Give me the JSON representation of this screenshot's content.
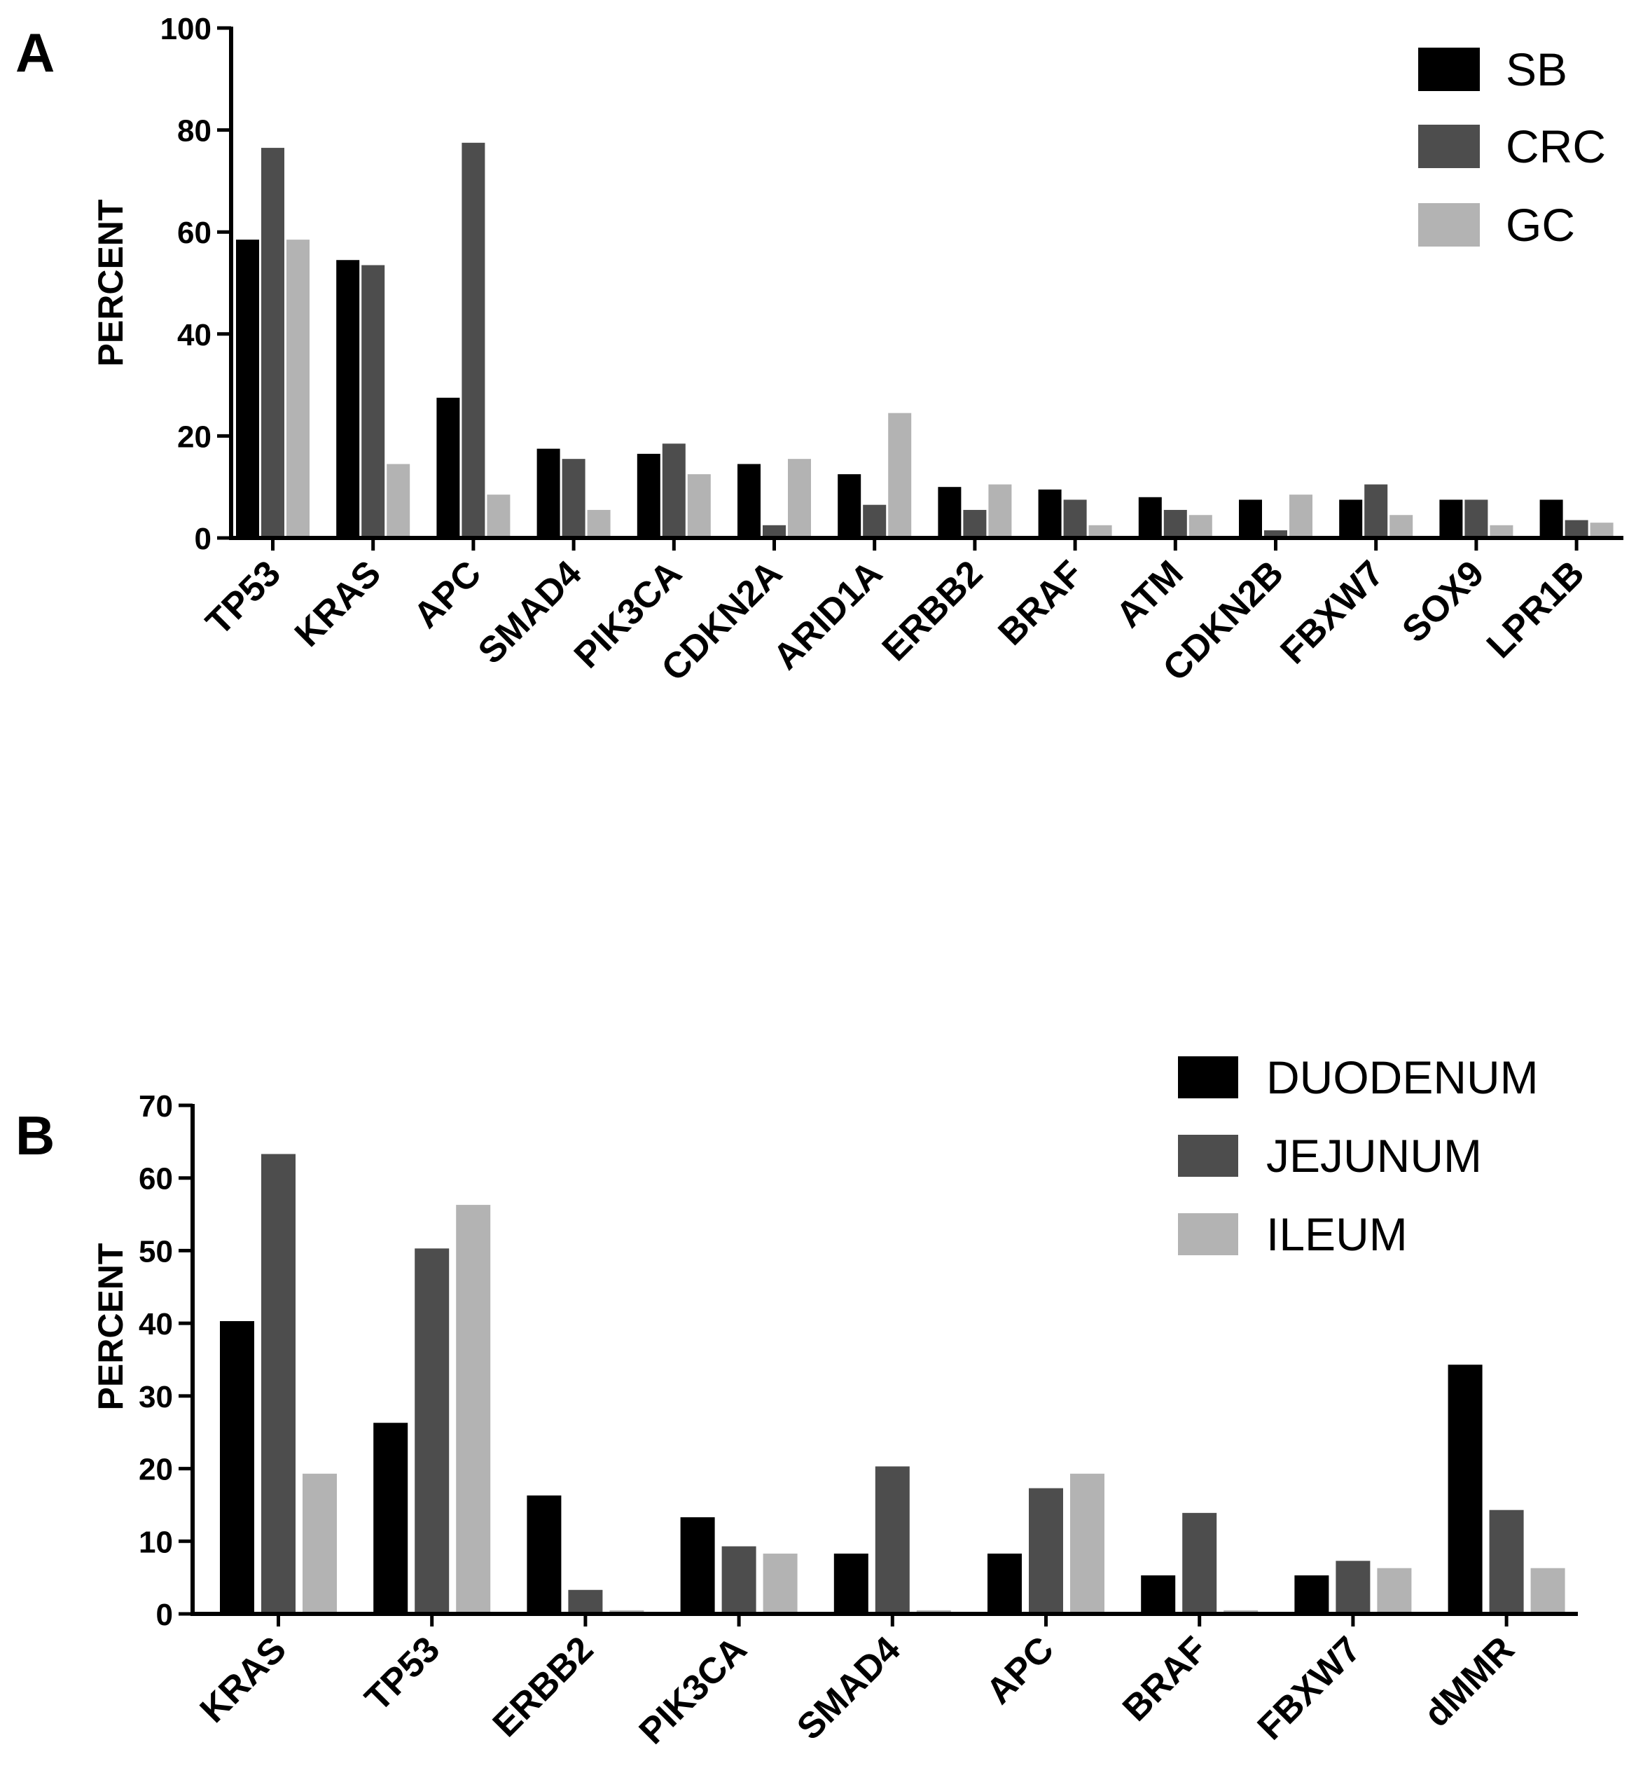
{
  "chart_data": [
    {
      "type": "bar",
      "panel": "A",
      "ylabel": "PERCENT",
      "xlabel": "",
      "ylim": [
        0,
        100
      ],
      "yticks": [
        0,
        20,
        40,
        60,
        80,
        100
      ],
      "categories": [
        "TP53",
        "KRAS",
        "APC",
        "SMAD4",
        "PIK3CA",
        "CDKN2A",
        "ARID1A",
        "ERBB2",
        "BRAF",
        "ATM",
        "CDKN2B",
        "FBXW7",
        "SOX9",
        "LPR1B"
      ],
      "series": [
        {
          "name": "SB",
          "color": "#000000",
          "values": [
            58.5,
            54.5,
            27.5,
            17.5,
            16.5,
            14.5,
            12.5,
            10,
            9.5,
            8,
            7.5,
            7.5,
            7.5,
            7.5
          ]
        },
        {
          "name": "CRC",
          "color": "#4d4d4d",
          "values": [
            76.5,
            53.5,
            77.5,
            15.5,
            18.5,
            2.5,
            6.5,
            5.5,
            7.5,
            5.5,
            1.5,
            10.5,
            7.5,
            3.5
          ]
        },
        {
          "name": "GC",
          "color": "#b3b3b3",
          "values": [
            58.5,
            14.5,
            8.5,
            5.5,
            12.5,
            15.5,
            24.5,
            10.5,
            2.5,
            4.5,
            8.5,
            4.5,
            2.5,
            3
          ]
        }
      ],
      "legend_position": "top-right"
    },
    {
      "type": "bar",
      "panel": "B",
      "ylabel": "PERCENT",
      "xlabel": "",
      "ylim": [
        0,
        70
      ],
      "yticks": [
        0,
        10,
        20,
        30,
        40,
        50,
        60,
        70
      ],
      "categories": [
        "KRAS",
        "TP53",
        "ERBB2",
        "PIK3CA",
        "SMAD4",
        "APC",
        "BRAF",
        "FBXW7",
        "dMMR"
      ],
      "series": [
        {
          "name": "DUODENUM",
          "color": "#000000",
          "values": [
            40.3,
            26.3,
            16.3,
            13.3,
            8.3,
            8.3,
            5.3,
            5.3,
            34.3
          ]
        },
        {
          "name": "JEJUNUM",
          "color": "#4d4d4d",
          "values": [
            63.3,
            50.3,
            3.3,
            9.3,
            20.3,
            17.3,
            13.9,
            7.3,
            14.3
          ]
        },
        {
          "name": "ILEUM",
          "color": "#b3b3b3",
          "values": [
            19.3,
            56.3,
            0.5,
            8.3,
            0.5,
            19.3,
            0.5,
            6.3,
            6.3
          ]
        }
      ],
      "legend_position": "top-right"
    }
  ]
}
